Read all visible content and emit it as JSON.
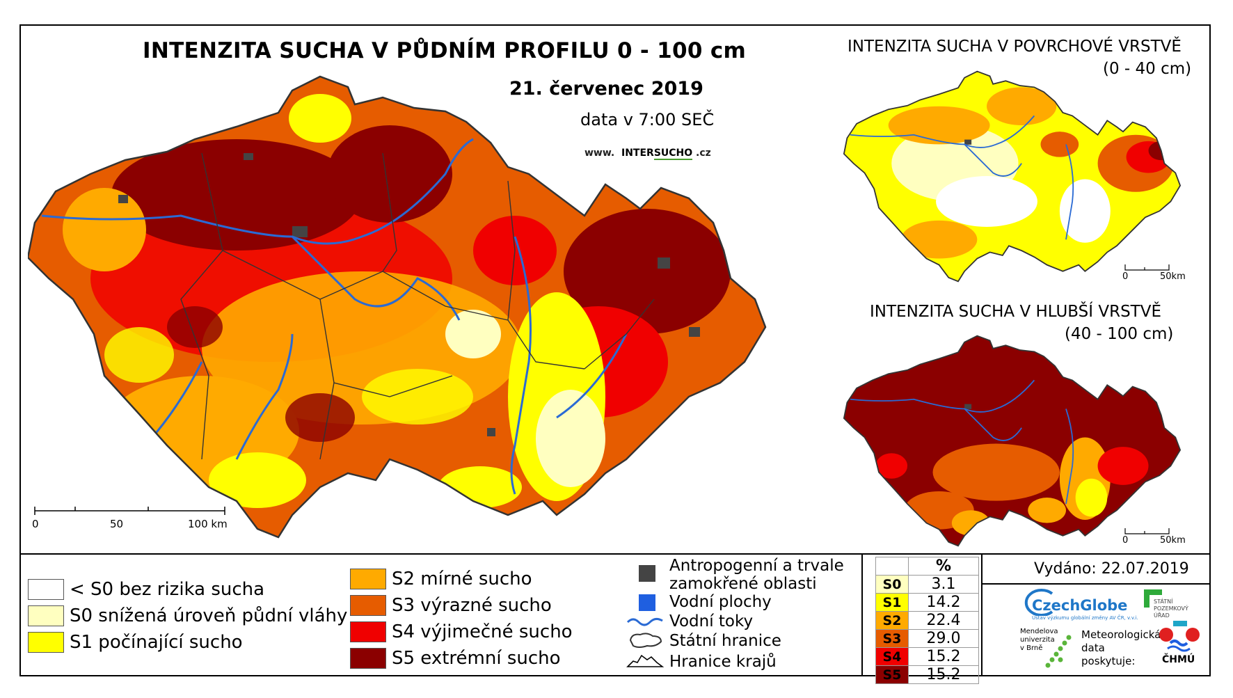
{
  "title": "INTENZITA SUCHA V PŮDNÍM PROFILU 0 - 100 cm",
  "date": "21. červenec 2019",
  "time": "data v 7:00 SEČ",
  "website": {
    "prefix": "www.",
    "brand_a": "INTER",
    "brand_b": "SUCHO",
    "suffix": ".cz"
  },
  "main_scale": {
    "t0": "0",
    "t50": "50",
    "t100": "100 km"
  },
  "inset_top": {
    "title": "INTENZITA SUCHA V POVRCHOVÉ VRSTVĚ",
    "subtitle": "(0 - 40 cm)",
    "scale_0": "0",
    "scale_50": "50km"
  },
  "inset_bottom": {
    "title": "INTENZITA SUCHA V HLUBŠÍ VRSTVĚ",
    "subtitle": "(40 - 100 cm)",
    "scale_0": "0",
    "scale_50": "50km"
  },
  "legend_classes": [
    {
      "label": "< S0 bez rizika sucha",
      "color": "#ffffff"
    },
    {
      "label": "S0 snížená úroveň půdní vláhy",
      "color": "#ffffc0"
    },
    {
      "label": "S1 počínající sucho",
      "color": "#ffff00"
    },
    {
      "label": "S2 mírné sucho",
      "color": "#ffaa00"
    },
    {
      "label": "S3 výrazné sucho",
      "color": "#e65c00"
    },
    {
      "label": "S4 výjimečné sucho",
      "color": "#f00000"
    },
    {
      "label": "S5 extrémní sucho",
      "color": "#8b0000"
    }
  ],
  "legend_symbols": {
    "anthro_line1": "Antropogenní a trvale",
    "anthro_line2": "zamokřené oblasti",
    "water_bodies": "Vodní plochy",
    "rivers": "Vodní toky",
    "state_border": "Státní hranice",
    "region_border": "Hranice krajů"
  },
  "stats": {
    "header": "%",
    "rows": [
      {
        "code": "S0",
        "value": "3.1",
        "color": "#ffffc0"
      },
      {
        "code": "S1",
        "value": "14.2",
        "color": "#ffff00"
      },
      {
        "code": "S2",
        "value": "22.4",
        "color": "#ffaa00"
      },
      {
        "code": "S3",
        "value": "29.0",
        "color": "#e65c00"
      },
      {
        "code": "S4",
        "value": "15.2",
        "color": "#f00000"
      },
      {
        "code": "S5",
        "value": "15.2",
        "color": "#8b0000"
      }
    ]
  },
  "issued": "Vydáno: 22.07.2019",
  "logos": {
    "czechglobe": "CzechGlobe",
    "czechglobe_sub": "Ústav výzkumu globální změny AV ČR, v.v.i.",
    "spu_1": "STÁTNÍ",
    "spu_2": "POZEMKOVÝ",
    "spu_3": "ÚŘAD",
    "mendel_1": "Mendelova",
    "mendel_2": "univerzita",
    "mendel_3": "v Brně",
    "meteo_1": "Meteorologická",
    "meteo_2": "data",
    "meteo_3": "poskytuje:",
    "chmu": "ČHMÚ"
  }
}
